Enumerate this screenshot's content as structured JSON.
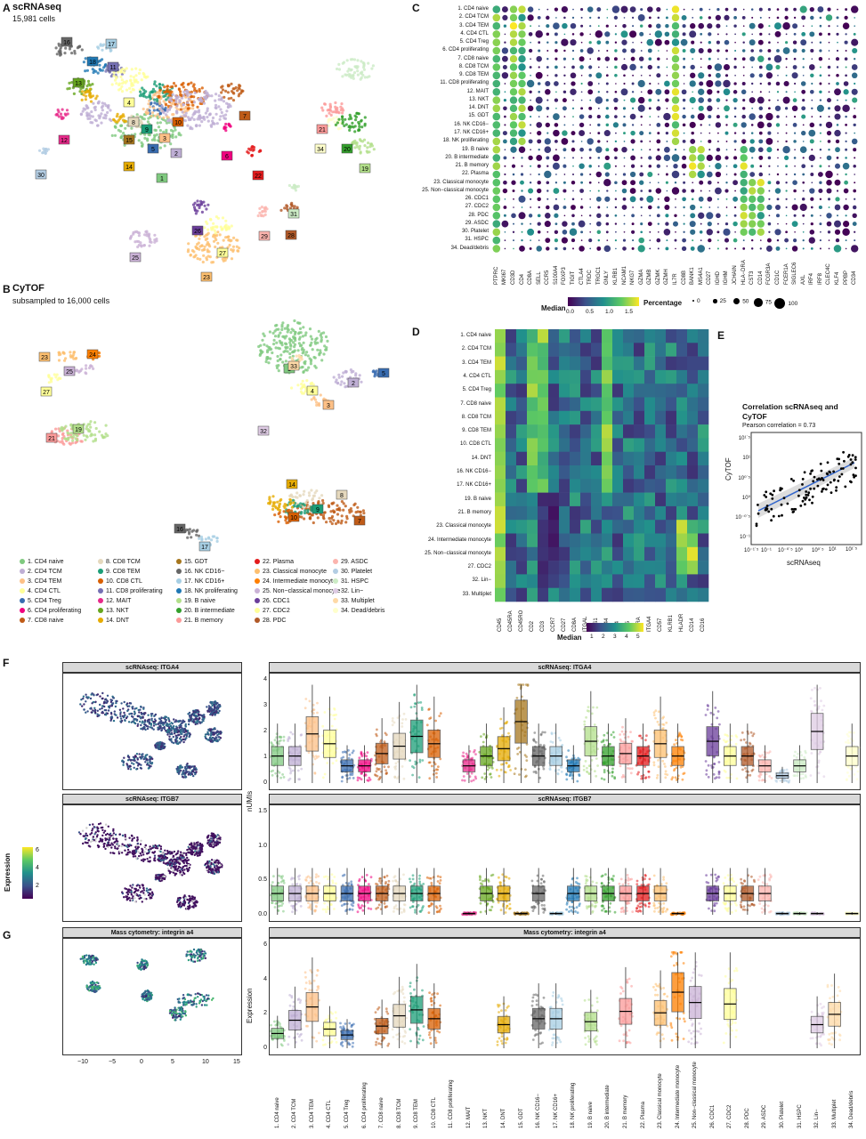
{
  "panelA": {
    "label": "A",
    "title": "scRNAseq",
    "subtitle": "15,981 cells",
    "cluster_numbers": [
      "16",
      "17",
      "18",
      "11",
      "13",
      "14",
      "1",
      "2",
      "3",
      "4",
      "5",
      "6",
      "7",
      "8",
      "9",
      "10",
      "12",
      "15",
      "19",
      "20",
      "21",
      "22",
      "23",
      "25",
      "26",
      "27",
      "28",
      "29",
      "30",
      "31",
      "34"
    ]
  },
  "panelB": {
    "label": "B",
    "title": "CyTOF",
    "subtitle": "subsampled to 16,000 cells",
    "cluster_numbers": [
      "1",
      "2",
      "3",
      "4",
      "5",
      "7",
      "8",
      "9",
      "10",
      "14",
      "16",
      "17",
      "19",
      "21",
      "23",
      "24",
      "25",
      "27",
      "32",
      "33"
    ]
  },
  "legend": [
    {
      "label": "1. CD4 naive",
      "color": "#7fc97f"
    },
    {
      "label": "2. CD4 TCM",
      "color": "#beaed4"
    },
    {
      "label": "3. CD4 TEM",
      "color": "#fdc086"
    },
    {
      "label": "4. CD4 CTL",
      "color": "#ffff99"
    },
    {
      "label": "5. CD4 Treg",
      "color": "#386cb0"
    },
    {
      "label": "6. CD4 proliferating",
      "color": "#f0027f"
    },
    {
      "label": "7. CD8 naive",
      "color": "#bf5b17"
    },
    {
      "label": "8. CD8 TCM",
      "color": "#e5d8bd"
    },
    {
      "label": "9. CD8 TEM",
      "color": "#1b9e77"
    },
    {
      "label": "10. CD8 CTL",
      "color": "#d95f02"
    },
    {
      "label": "11. CD8 proliferating",
      "color": "#7570b3"
    },
    {
      "label": "12. MAIT",
      "color": "#e7298a"
    },
    {
      "label": "13. NKT",
      "color": "#66a61e"
    },
    {
      "label": "14. DNT",
      "color": "#e6ab02"
    },
    {
      "label": "15. GDT",
      "color": "#a6761d"
    },
    {
      "label": "16. NK CD16−",
      "color": "#666666"
    },
    {
      "label": "17. NK CD16+",
      "color": "#a6cee3"
    },
    {
      "label": "18. NK proliferating",
      "color": "#1f78b4"
    },
    {
      "label": "19. B naive",
      "color": "#b2df8a"
    },
    {
      "label": "20. B intermediate",
      "color": "#33a02c"
    },
    {
      "label": "21. B memory",
      "color": "#fb9a99"
    },
    {
      "label": "22. Plasma",
      "color": "#e31a1c"
    },
    {
      "label": "23. Classical monocyte",
      "color": "#fdbf6f"
    },
    {
      "label": "24. Intermediate monocyte",
      "color": "#ff7f00"
    },
    {
      "label": "25. Non−classical monocyte",
      "color": "#cab2d6"
    },
    {
      "label": "26. CDC1",
      "color": "#6a3d9a"
    },
    {
      "label": "27. CDC2",
      "color": "#ffff99"
    },
    {
      "label": "28. PDC",
      "color": "#b15928"
    },
    {
      "label": "29. ASDC",
      "color": "#fbb4ae"
    },
    {
      "label": "30. Platelet",
      "color": "#b3cde3"
    },
    {
      "label": "31. HSPC",
      "color": "#ccebc5"
    },
    {
      "label": "32. Lin−",
      "color": "#decbe4"
    },
    {
      "label": "33. Multiplet",
      "color": "#fed9a6"
    },
    {
      "label": "34. Dead/debris",
      "color": "#ffffcc"
    }
  ],
  "panelC": {
    "label": "C",
    "rows": [
      "1. CD4 naive",
      "2. CD4 TCM",
      "3. CD4 TEM",
      "4. CD4 CTL",
      "5. CD4 Treg",
      "6. CD4 proliferating",
      "7. CD8 naive",
      "8. CD8 TCM",
      "9. CD8 TEM",
      "11. CD8 proliferating",
      "12. MAIT",
      "13. NKT",
      "14. DNT",
      "15. GDT",
      "16. NK CD16−",
      "17. NK CD16+",
      "18. NK proliferating",
      "19. B naive",
      "20. B intermediate",
      "21. B memory",
      "22. Plasma",
      "23. Classical monocyte",
      "25. Non−classical monocyte",
      "26. CDC1",
      "27. CDC2",
      "28. PDC",
      "29. ASDC",
      "30. Platelet",
      "31. HSPC",
      "34. Dead/debris"
    ],
    "cols": [
      "PTPRC",
      "MKI67",
      "CD3D",
      "CD4",
      "CD8A",
      "SELL",
      "CCR5",
      "S100A4",
      "FOXP3",
      "TIGIT",
      "CTLA4",
      "TRDC",
      "TRGC1",
      "GNLY",
      "KLRB1",
      "NCAM1",
      "NKG7",
      "GZMA",
      "GZMB",
      "GZMK",
      "GZMH",
      "IL7R",
      "CD8B",
      "BANK1",
      "MS4A1",
      "CD27",
      "IGHD",
      "IGHM",
      "JCHAIN",
      "HLA−DRA",
      "CST3",
      "CD14",
      "FCGR3A",
      "CD1C",
      "FCER1A",
      "SIGLEC6",
      "AXL",
      "IRF4",
      "IRF8",
      "CLEC4C",
      "KLF4",
      "PPBP",
      "CD34"
    ],
    "color_legend_title": "Median",
    "color_ticks": [
      "0.0",
      "0.5",
      "1.0",
      "1.5"
    ],
    "size_legend_title": "Percentage",
    "size_ticks": [
      "0",
      "25",
      "50",
      "75",
      "100"
    ]
  },
  "panelD": {
    "label": "D",
    "rows": [
      "1. CD4 naive",
      "2. CD4 TCM",
      "3. CD4 TEM",
      "4. CD4 CTL",
      "5. CD4 Treg",
      "7. CD8 naive",
      "8. CD8 TCM",
      "9. CD8 TEM",
      "10. CD8 CTL",
      "14. DNT",
      "16. NK CD16−",
      "17. NK CD16+",
      "19. B naive",
      "21. B memory",
      "23. Classical monocyte",
      "24. Intermediate monocyte",
      "25. Non−classical monocyte",
      "27. CDC2",
      "32. Lin−",
      "33. Multiplet"
    ],
    "cols": [
      "CD45",
      "CD45RA",
      "CD45RO",
      "CD2",
      "CD3",
      "CCR7",
      "CD27",
      "CD8A",
      "ITGAL",
      "CES1",
      "CD44",
      "CD4",
      "CD5",
      "IL7RA",
      "ITGA4",
      "CD57",
      "KLRB1",
      "HLADR",
      "CD14",
      "CD16"
    ],
    "legend_title": "Median",
    "legend_ticks": [
      "1",
      "2",
      "3",
      "4",
      "5"
    ]
  },
  "panelE": {
    "label": "E",
    "title": "Correlation scRNAseq and CyTOF",
    "subtitle": "Pearson correlation = 0.73",
    "xlabel": "scRNAseq",
    "ylabel": "CyTOF",
    "yticks": [
      "10¹˙⁵",
      "10¹",
      "10⁰˙⁵",
      "10⁰",
      "10⁻⁰˙⁵",
      "10⁻¹"
    ],
    "xticks": [
      "10⁻¹˙⁵",
      "10⁻¹",
      "10⁻⁰˙⁵",
      "10⁰",
      "10⁰˙⁵",
      "10¹",
      "10¹˙⁵"
    ]
  },
  "panelF": {
    "label": "F",
    "umap1_title": "scRNAseq: ITGA4",
    "umap2_title": "scRNAseq: ITGB7",
    "box1_title": "scRNAseq: ITGA4",
    "box2_title": "scRNAseq: ITGB7",
    "ylabel": "nUMIs",
    "expr_legend_title": "Expression",
    "expr_ticks": [
      "6",
      "4",
      "2"
    ],
    "y1_ticks": [
      "4",
      "3",
      "2",
      "1",
      "0"
    ],
    "y2_ticks": [
      "1.5",
      "1.0",
      "0.5",
      "0.0"
    ]
  },
  "panelG": {
    "label": "G",
    "umap_title": "Mass cytometry: integrin a4",
    "box_title": "Mass cytometry: integrin a4",
    "ylabel": "Expression",
    "y_ticks": [
      "6",
      "4",
      "2",
      "0"
    ],
    "x_ticks": [
      "−10",
      "−5",
      "0",
      "5",
      "10",
      "15"
    ],
    "categories": [
      "1. CD4 naive",
      "2. CD4 TCM",
      "3. CD4 TEM",
      "4. CD4 CTL",
      "5. CD4 Treg",
      "6. CD4 proliferating",
      "7. CD8 naive",
      "8. CD8 TCM",
      "9. CD8 TEM",
      "10. CD8 CTL",
      "11. CD8 proliferating",
      "12. MAIT",
      "13. NKT",
      "14. DNT",
      "15. GDT",
      "16. NK CD16−",
      "17. NK CD16+",
      "18. NK proliferating",
      "19. B naive",
      "20. B intermediate",
      "21. B memory",
      "22. Plasma",
      "23. Classical monocyte",
      "24. Intermediate monocyte",
      "25. Non−classical monocyte",
      "26. CDC1",
      "27. CDC2",
      "28. PDC",
      "29. ASDC",
      "30. Platelet",
      "31. HSPC",
      "32. Lin−",
      "33. Multiplet",
      "34. Dead/debris"
    ]
  },
  "chart_data": [
    {
      "type": "scatter",
      "title": "Correlation scRNAseq and CyTOF",
      "subtitle": "Pearson correlation = 0.73",
      "xlabel": "scRNAseq",
      "ylabel": "CyTOF",
      "log_scale": true,
      "pearson": 0.73
    },
    {
      "type": "box",
      "title": "scRNAseq: ITGA4",
      "ylabel": "nUMIs",
      "medians": [
        1.1,
        1.1,
        2.0,
        1.6,
        0.7,
        0.7,
        1.2,
        1.5,
        1.9,
        1.6,
        null,
        0.7,
        1.1,
        1.4,
        2.5,
        1.1,
        1.1,
        0.7,
        1.7,
        1.1,
        1.2,
        1.1,
        1.6,
        1.1,
        null,
        1.7,
        1.1,
        1.1,
        0.7,
        0.3,
        0.7,
        2.1,
        null,
        1.1
      ]
    },
    {
      "type": "box",
      "title": "Mass cytometry: integrin a4",
      "ylabel": "Expression",
      "medians": [
        1.0,
        1.9,
        2.8,
        1.3,
        0.9,
        null,
        1.5,
        2.2,
        2.6,
        2.0,
        null,
        null,
        null,
        1.6,
        null,
        2.0,
        2.0,
        null,
        1.8,
        null,
        2.5,
        null,
        2.4,
        3.8,
        3.1,
        null,
        3.0,
        null,
        null,
        null,
        null,
        1.6,
        2.3,
        null
      ]
    }
  ]
}
